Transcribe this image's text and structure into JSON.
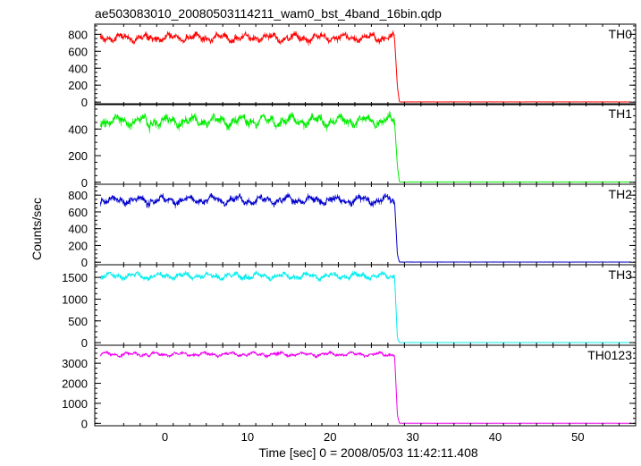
{
  "chart_data": {
    "type": "line",
    "title": "ae503083010_20080503114211_wam0_bst_4band_16bin.qdp",
    "xlabel": "Time [sec] 0 = 2008/05/03 11:42:11.408",
    "ylabel": "Counts/sec",
    "xlim": [
      -8.5,
      57
    ],
    "x_ticks": [
      0,
      10,
      20,
      30,
      40,
      50
    ],
    "x_tick_labels": [
      "0",
      "10",
      "20",
      "30",
      "40",
      "50"
    ],
    "drop_time": 27.8,
    "t_start": -7.8,
    "t_end": 56.5,
    "grid": false,
    "panels": [
      {
        "name": "TH0",
        "color": "#ff0000",
        "ylim": [
          -30,
          920
        ],
        "y_ticks": [
          0,
          200,
          400,
          600,
          800
        ],
        "y_tick_labels": [
          "0",
          "200",
          "400",
          "600",
          "800"
        ],
        "pre_level": 760,
        "pre_amp": 55,
        "tail_level": 180,
        "post_level": 2
      },
      {
        "name": "TH1",
        "color": "#00ee00",
        "ylim": [
          -15,
          590
        ],
        "y_ticks": [
          0,
          200,
          400
        ],
        "y_tick_labels": [
          "0",
          "200",
          "400"
        ],
        "pre_level": 460,
        "pre_amp": 45,
        "tail_level": 120,
        "post_level": 2
      },
      {
        "name": "TH2",
        "color": "#0000cc",
        "ylim": [
          -30,
          930
        ],
        "y_ticks": [
          0,
          200,
          400,
          600,
          800
        ],
        "y_tick_labels": [
          "0",
          "200",
          "400",
          "600",
          "800"
        ],
        "pre_level": 740,
        "pre_amp": 55,
        "tail_level": 90,
        "post_level": 2
      },
      {
        "name": "TH3",
        "color": "#00eeee",
        "ylim": [
          -60,
          1790
        ],
        "y_ticks": [
          0,
          500,
          1000,
          1500
        ],
        "y_tick_labels": [
          "0",
          "500",
          "1000",
          "1500"
        ],
        "pre_level": 1530,
        "pre_amp": 80,
        "tail_level": 100,
        "post_level": 2
      },
      {
        "name": "TH0123",
        "color": "#ee00ee",
        "ylim": [
          -120,
          3900
        ],
        "y_ticks": [
          0,
          1000,
          2000,
          3000
        ],
        "y_tick_labels": [
          "0",
          "1000",
          "2000",
          "3000"
        ],
        "pre_level": 3450,
        "pre_amp": 110,
        "tail_level": 400,
        "post_level": 5
      }
    ]
  }
}
